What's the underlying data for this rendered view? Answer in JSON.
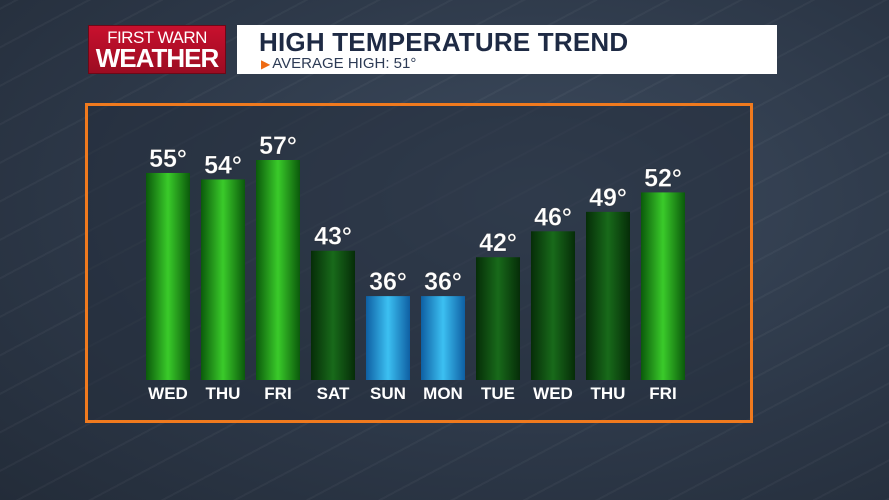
{
  "logo": {
    "line1": "FIRST WARN",
    "line2": "WEATHER"
  },
  "header": {
    "title": "HIGH TEMPERATURE TREND",
    "subtitle": "AVERAGE HIGH: 51°"
  },
  "colors": {
    "above_average": "#1fa81f",
    "below_average": "#0d4f12",
    "cold": "#1f8fd3",
    "frame": "#f07a1e"
  },
  "chart_data": {
    "type": "bar",
    "categories": [
      "WED",
      "THU",
      "FRI",
      "SAT",
      "SUN",
      "MON",
      "TUE",
      "WED",
      "THU",
      "FRI"
    ],
    "values": [
      55,
      54,
      57,
      43,
      36,
      36,
      42,
      46,
      49,
      52
    ],
    "value_labels": [
      "55°",
      "54°",
      "57°",
      "43°",
      "36°",
      "36°",
      "42°",
      "46°",
      "49°",
      "52°"
    ],
    "color_groups": [
      "above_average",
      "above_average",
      "above_average",
      "below_average",
      "cold",
      "cold",
      "below_average",
      "below_average",
      "below_average",
      "above_average"
    ],
    "title": "HIGH TEMPERATURE TREND",
    "subtitle": "AVERAGE HIGH: 51°",
    "xlabel": "",
    "ylabel": "",
    "ylim": [
      30,
      57
    ],
    "grid": false,
    "legend": "none"
  }
}
